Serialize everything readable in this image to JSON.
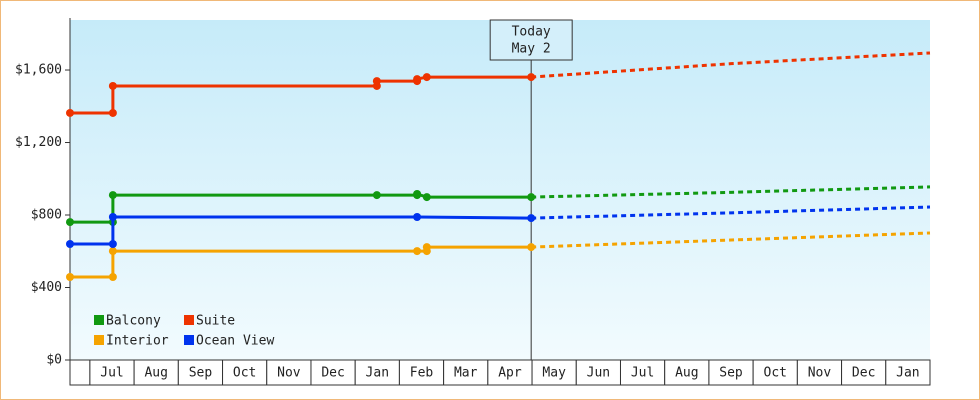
{
  "chart_data": {
    "type": "line",
    "xlim": [
      -0.45,
      19
    ],
    "ylim": [
      0,
      1876
    ],
    "xticks": [
      {
        "value": 0.5,
        "label": "Jul"
      },
      {
        "value": 1.5,
        "label": "Aug"
      },
      {
        "value": 2.5,
        "label": "Sep"
      },
      {
        "value": 3.5,
        "label": "Oct"
      },
      {
        "value": 4.5,
        "label": "Nov"
      },
      {
        "value": 5.5,
        "label": "Dec"
      },
      {
        "value": 6.5,
        "label": "Jan"
      },
      {
        "value": 7.5,
        "label": "Feb"
      },
      {
        "value": 8.5,
        "label": "Mar"
      },
      {
        "value": 9.5,
        "label": "Apr"
      },
      {
        "value": 10.5,
        "label": "May"
      },
      {
        "value": 11.5,
        "label": "Jun"
      },
      {
        "value": 12.5,
        "label": "Jul"
      },
      {
        "value": 13.5,
        "label": "Aug"
      },
      {
        "value": 14.5,
        "label": "Sep"
      },
      {
        "value": 15.5,
        "label": "Oct"
      },
      {
        "value": 16.5,
        "label": "Nov"
      },
      {
        "value": 17.5,
        "label": "Dec"
      },
      {
        "value": 18.5,
        "label": "Jan"
      }
    ],
    "yticks": [
      {
        "value": 0,
        "label": "$0"
      },
      {
        "value": 400,
        "label": "$400"
      },
      {
        "value": 800,
        "label": "$800"
      },
      {
        "value": 1200,
        "label": "$1,200"
      },
      {
        "value": 1600,
        "label": "$1,600"
      }
    ],
    "today": {
      "x": 9.98,
      "label": [
        "Today",
        "May 2"
      ]
    },
    "series": [
      {
        "name": "Balcony",
        "color": "#119911",
        "x": [
          -0.45,
          0.52,
          0.52,
          6.49,
          7.4,
          7.4,
          7.62,
          9.98
        ],
        "values": [
          761,
          761,
          910,
          910,
          910,
          916,
          899,
          899
        ],
        "forecast_x": [
          9.98,
          14.5,
          19
        ],
        "forecast": [
          899,
          925,
          955
        ]
      },
      {
        "name": "Suite",
        "color": "#ee3300",
        "x": [
          -0.45,
          0.52,
          0.52,
          6.49,
          6.49,
          7.4,
          7.4,
          7.62,
          9.98
        ],
        "values": [
          1363,
          1363,
          1512,
          1512,
          1539,
          1539,
          1550,
          1561,
          1561
        ],
        "forecast_x": [
          9.98,
          14.5,
          19
        ],
        "forecast": [
          1561,
          1635,
          1694
        ]
      },
      {
        "name": "Interior",
        "color": "#f5a300",
        "x": [
          -0.45,
          0.52,
          0.52,
          7.4,
          7.62,
          7.62,
          9.98
        ],
        "values": [
          458,
          458,
          601,
          601,
          601,
          623,
          623
        ],
        "forecast_x": [
          9.98,
          14.5,
          19
        ],
        "forecast": [
          623,
          662,
          701
        ]
      },
      {
        "name": "Ocean View",
        "color": "#0033ee",
        "x": [
          -0.45,
          0.52,
          0.52,
          7.4,
          9.98
        ],
        "values": [
          640,
          640,
          789,
          789,
          783
        ],
        "forecast_x": [
          9.98,
          14.5,
          19
        ],
        "forecast": [
          783,
          812,
          844
        ]
      }
    ]
  }
}
